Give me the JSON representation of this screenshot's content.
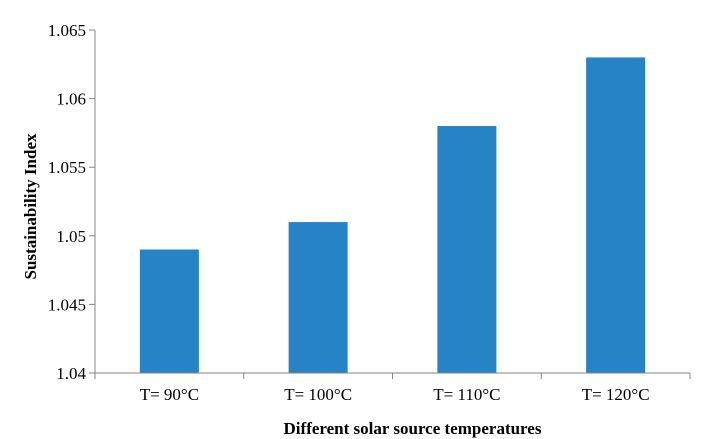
{
  "chart_data": {
    "type": "bar",
    "title": "",
    "xlabel": "Different solar source temperatures",
    "ylabel": "Sustainability Index",
    "categories": [
      "T= 90°C",
      "T= 100°C",
      "T= 110°C",
      "T= 120°C"
    ],
    "values": [
      1.049,
      1.051,
      1.058,
      1.063
    ],
    "ylim": [
      1.04,
      1.065
    ],
    "yticks": [
      1.04,
      1.045,
      1.05,
      1.055,
      1.06,
      1.065
    ],
    "ytick_labels": [
      "1.04",
      "1.045",
      "1.05",
      "1.055",
      "1.06",
      "1.065"
    ],
    "grid": false,
    "legend": "none",
    "bar_color": "#2583c6",
    "axis_color": "#868686"
  }
}
